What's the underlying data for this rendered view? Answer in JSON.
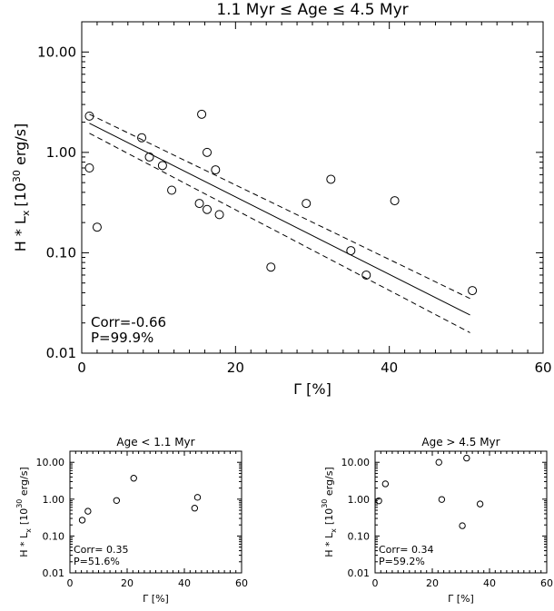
{
  "chart_data": [
    {
      "type": "scatter",
      "title": "1.1 Myr ≤ Age ≤ 4.5 Myr",
      "xlabel": "Γ [%]",
      "ylabel_main": "H * L",
      "ylabel_sub": "x",
      "ylabel_bracket": "[10",
      "ylabel_exp": "30",
      "ylabel_unit": " erg/s]",
      "xlim": [
        0,
        60
      ],
      "ylim": [
        0.01,
        20
      ],
      "ylog": true,
      "x_ticks": [
        0,
        20,
        40,
        60
      ],
      "x_tick_labels": [
        "0",
        "20",
        "40",
        "60"
      ],
      "y_ticks": [
        0.01,
        0.1,
        1,
        10
      ],
      "y_tick_labels": [
        "0.01",
        "0.10",
        "1.00",
        "10.00"
      ],
      "points": [
        {
          "x": 1.0,
          "y": 2.3
        },
        {
          "x": 1.0,
          "y": 0.7
        },
        {
          "x": 2.0,
          "y": 0.18
        },
        {
          "x": 7.8,
          "y": 1.4
        },
        {
          "x": 8.8,
          "y": 0.9
        },
        {
          "x": 10.5,
          "y": 0.74
        },
        {
          "x": 11.7,
          "y": 0.42
        },
        {
          "x": 15.3,
          "y": 0.31
        },
        {
          "x": 15.6,
          "y": 2.4
        },
        {
          "x": 16.3,
          "y": 1.0
        },
        {
          "x": 16.3,
          "y": 0.27
        },
        {
          "x": 17.4,
          "y": 0.67
        },
        {
          "x": 17.9,
          "y": 0.24
        },
        {
          "x": 24.6,
          "y": 0.072
        },
        {
          "x": 29.2,
          "y": 0.31
        },
        {
          "x": 32.4,
          "y": 0.54
        },
        {
          "x": 35.0,
          "y": 0.105
        },
        {
          "x": 37.0,
          "y": 0.06
        },
        {
          "x": 40.7,
          "y": 0.33
        },
        {
          "x": 50.8,
          "y": 0.042
        }
      ],
      "fit_line": {
        "x": [
          1,
          50.5
        ],
        "y": [
          1.95,
          0.024
        ]
      },
      "confidence_upper": {
        "x": [
          1,
          50.5
        ],
        "y": [
          2.4,
          0.035
        ]
      },
      "confidence_lower": {
        "x": [
          1,
          50.5
        ],
        "y": [
          1.55,
          0.016
        ]
      },
      "annotation_lines": [
        "Corr=-0.66",
        "P=99.9%"
      ],
      "grid": false
    },
    {
      "type": "scatter",
      "title": "Age < 1.1 Myr",
      "xlabel": "Γ [%]",
      "ylabel_main": "H * L",
      "ylabel_sub": "x",
      "ylabel_bracket": "[10",
      "ylabel_exp": "30",
      "ylabel_unit": " erg/s]",
      "xlim": [
        0,
        60
      ],
      "ylim": [
        0.01,
        20
      ],
      "ylog": true,
      "x_ticks": [
        0,
        20,
        40,
        60
      ],
      "x_tick_labels": [
        "0",
        "20",
        "40",
        "60"
      ],
      "y_ticks": [
        0.01,
        0.1,
        1,
        10
      ],
      "y_tick_labels": [
        "0.01",
        "0.10",
        "1.00",
        "10.00"
      ],
      "points": [
        {
          "x": 4.3,
          "y": 0.27
        },
        {
          "x": 6.3,
          "y": 0.47
        },
        {
          "x": 16.3,
          "y": 0.92
        },
        {
          "x": 22.3,
          "y": 3.7
        },
        {
          "x": 43.6,
          "y": 0.57
        },
        {
          "x": 44.6,
          "y": 1.12
        }
      ],
      "annotation_lines": [
        "Corr= 0.35",
        "P=51.6%"
      ],
      "grid": false
    },
    {
      "type": "scatter",
      "title": "Age > 4.5 Myr",
      "xlabel": "Γ [%]",
      "ylabel_main": "H * L",
      "ylabel_sub": "x",
      "ylabel_bracket": "[10",
      "ylabel_exp": "30",
      "ylabel_unit": " erg/s]",
      "xlim": [
        0,
        60
      ],
      "ylim": [
        0.01,
        20
      ],
      "ylog": true,
      "x_ticks": [
        0,
        20,
        40,
        60
      ],
      "x_tick_labels": [
        "0",
        "20",
        "40",
        "60"
      ],
      "y_ticks": [
        0.01,
        0.1,
        1,
        10
      ],
      "y_tick_labels": [
        "0.01",
        "0.10",
        "1.00",
        "10.00"
      ],
      "points": [
        {
          "x": 1.3,
          "y": 0.9
        },
        {
          "x": 3.6,
          "y": 2.6
        },
        {
          "x": 22.3,
          "y": 10.0
        },
        {
          "x": 23.3,
          "y": 0.98
        },
        {
          "x": 30.5,
          "y": 0.19
        },
        {
          "x": 32.0,
          "y": 13.0
        },
        {
          "x": 36.7,
          "y": 0.74
        }
      ],
      "annotation_lines": [
        "Corr= 0.34",
        "P=59.2%"
      ],
      "grid": false
    }
  ]
}
